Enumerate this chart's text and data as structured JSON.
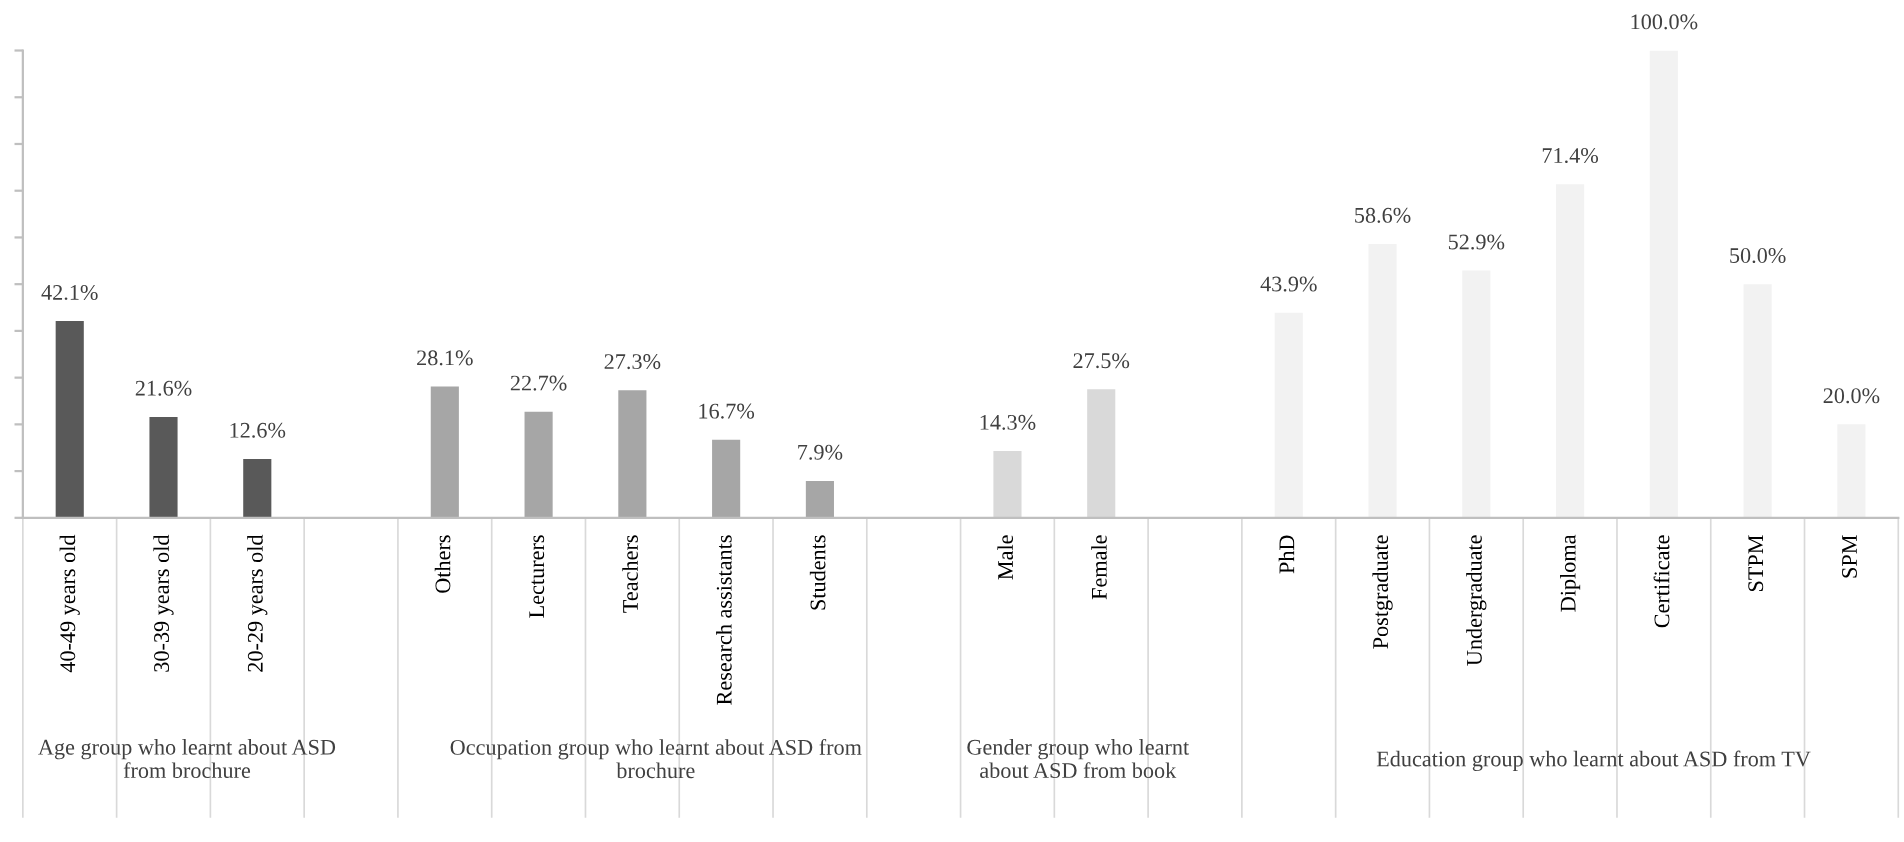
{
  "chart_data": {
    "type": "bar",
    "categories": [
      "40-49 years old",
      "30-39 years old",
      "20-29 years old",
      null,
      "Others",
      "Lecturers",
      "Teachers",
      "Research assistants",
      "Students",
      null,
      "Male",
      "Female",
      null,
      "PhD",
      "Postgraduate",
      "Undergraduate",
      "Diploma",
      "Certificate",
      "STPM",
      "SPM"
    ],
    "values": [
      42.1,
      21.6,
      12.6,
      null,
      28.1,
      22.7,
      27.3,
      16.7,
      7.9,
      null,
      14.3,
      27.5,
      null,
      43.9,
      58.6,
      52.9,
      71.4,
      100.0,
      50.0,
      20.0
    ],
    "value_labels": [
      "42.1%",
      "21.6%",
      "12.6%",
      null,
      "28.1%",
      "22.7%",
      "27.3%",
      "16.7%",
      "7.9%",
      null,
      "14.3%",
      "27.5%",
      null,
      "43.9%",
      "58.6%",
      "52.9%",
      "71.4%",
      "100.0%",
      "50.0%",
      "20.0%"
    ],
    "colors": [
      "#595959",
      "#595959",
      "#595959",
      null,
      "#a6a6a6",
      "#a6a6a6",
      "#a6a6a6",
      "#a6a6a6",
      "#a6a6a6",
      null,
      "#d9d9d9",
      "#d9d9d9",
      null,
      "#f2f2f2",
      "#f2f2f2",
      "#f2f2f2",
      "#f2f2f2",
      "#f2f2f2",
      "#f2f2f2",
      "#f2f2f2"
    ],
    "ylim": [
      0,
      100
    ],
    "yticks": [
      {
        "value": 0,
        "label": null
      },
      {
        "value": 10,
        "label": null
      },
      {
        "value": 20,
        "label": null
      },
      {
        "value": 30,
        "label": null
      },
      {
        "value": 40,
        "label": null
      },
      {
        "value": 50,
        "label": null
      },
      {
        "value": 60,
        "label": null
      },
      {
        "value": 70,
        "label": null
      },
      {
        "value": 80,
        "label": null
      },
      {
        "value": 90,
        "label": null
      },
      {
        "value": 100,
        "label": null
      }
    ],
    "grid": false,
    "annotations": [
      "Age group who learnt about ASD\nfrom brochure",
      "Occupation group who learnt about ASD from\nbrochure",
      "Gender group who learnt\nabout ASD from book",
      "Education group who learnt about ASD from TV"
    ]
  }
}
